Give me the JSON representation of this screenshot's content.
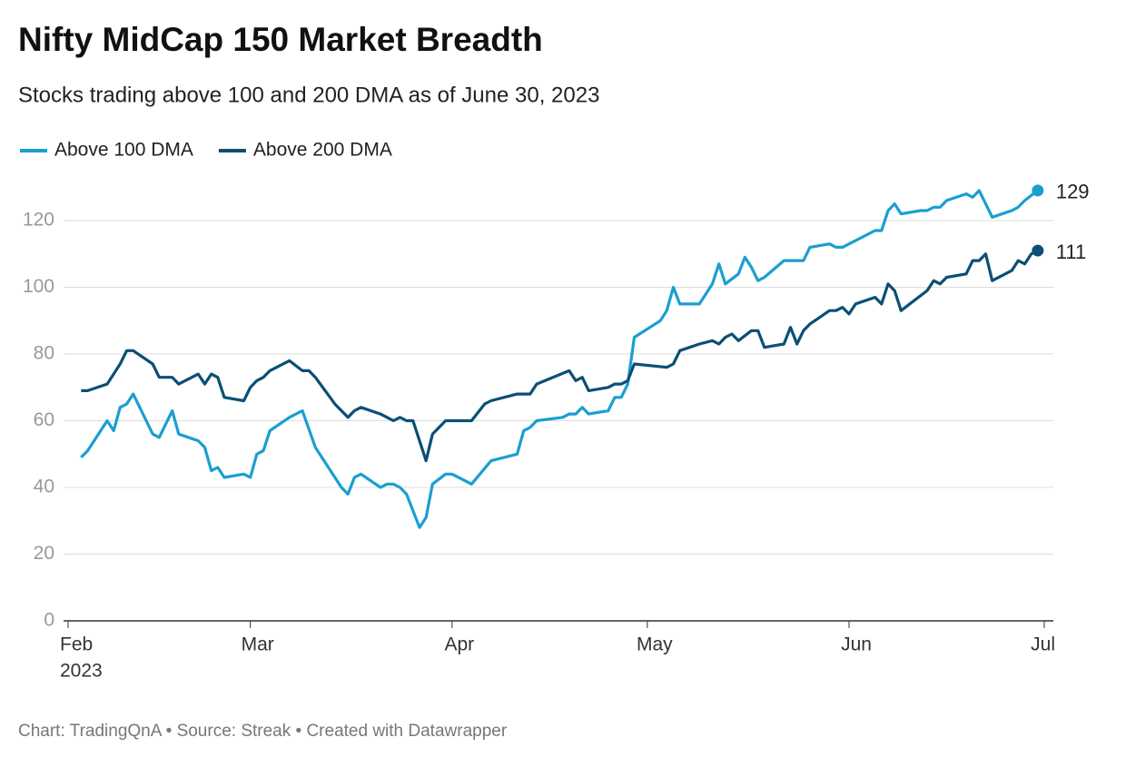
{
  "chart_data": {
    "type": "line",
    "title": "Nifty MidCap 150 Market Breadth",
    "subtitle": "Stocks trading above 100 and 200 DMA as of June 30, 2023",
    "source": "Chart: TradingQnA • Source: Streak • Created with Datawrapper",
    "x_year_label": "2023",
    "xlim": [
      0,
      150
    ],
    "xticks": [
      {
        "value": 0,
        "label": "Feb"
      },
      {
        "value": 28,
        "label": "Mar"
      },
      {
        "value": 59,
        "label": "Apr"
      },
      {
        "value": 89,
        "label": "May"
      },
      {
        "value": 120,
        "label": "Jun"
      },
      {
        "value": 150,
        "label": "Jul"
      }
    ],
    "ylim": [
      0,
      132
    ],
    "yticks": [
      0,
      20,
      40,
      60,
      80,
      100,
      120
    ],
    "grid": true,
    "legend": "top",
    "series": [
      {
        "name": "Above 100 DMA",
        "color": "#1a9fd0",
        "x": [
          2,
          3,
          6,
          7,
          8,
          9,
          10,
          13,
          14,
          16,
          17,
          20,
          21,
          22,
          23,
          24,
          27,
          28,
          29,
          30,
          31,
          34,
          36,
          38,
          42,
          43,
          44,
          45,
          48,
          49,
          50,
          51,
          52,
          54,
          55,
          56,
          58,
          59,
          62,
          65,
          69,
          70,
          71,
          72,
          76,
          77,
          78,
          79,
          80,
          83,
          84,
          85,
          86,
          87,
          91,
          92,
          93,
          94,
          97,
          99,
          100,
          101,
          103,
          104,
          105,
          106,
          107,
          110,
          113,
          114,
          117,
          118,
          119,
          124,
          125,
          126,
          127,
          128,
          131,
          132,
          133,
          134,
          135,
          138,
          139,
          140,
          142,
          145,
          146,
          147,
          149
        ],
        "values": [
          49,
          51,
          60,
          57,
          64,
          65,
          68,
          56,
          55,
          63,
          56,
          54,
          52,
          45,
          46,
          43,
          44,
          43,
          50,
          51,
          57,
          61,
          63,
          52,
          40,
          38,
          43,
          44,
          40,
          41,
          41,
          40,
          38,
          28,
          31,
          41,
          44,
          44,
          41,
          48,
          50,
          57,
          58,
          60,
          61,
          62,
          62,
          64,
          62,
          63,
          67,
          67,
          71,
          85,
          90,
          93,
          100,
          95,
          95,
          101,
          107,
          101,
          104,
          109,
          106,
          102,
          103,
          108,
          108,
          112,
          113,
          112,
          112,
          117,
          117,
          123,
          125,
          122,
          123,
          123,
          124,
          124,
          126,
          128,
          127,
          129,
          121,
          123,
          124,
          126,
          129
        ]
      },
      {
        "name": "Above 200 DMA",
        "color": "#0b4f75",
        "x": [
          2,
          3,
          6,
          8,
          9,
          10,
          13,
          14,
          16,
          17,
          20,
          21,
          22,
          23,
          24,
          27,
          28,
          29,
          30,
          31,
          34,
          36,
          37,
          38,
          41,
          43,
          44,
          45,
          48,
          49,
          50,
          51,
          52,
          53,
          55,
          56,
          58,
          62,
          64,
          65,
          69,
          71,
          72,
          77,
          78,
          79,
          80,
          83,
          84,
          85,
          86,
          87,
          92,
          93,
          94,
          97,
          99,
          100,
          101,
          102,
          103,
          105,
          106,
          107,
          110,
          111,
          112,
          113,
          114,
          117,
          118,
          119,
          120,
          121,
          124,
          125,
          126,
          127,
          128,
          132,
          133,
          134,
          135,
          138,
          139,
          140,
          141,
          142,
          145,
          146,
          147,
          148,
          149
        ],
        "values": [
          69,
          69,
          71,
          77,
          81,
          81,
          77,
          73,
          73,
          71,
          74,
          71,
          74,
          73,
          67,
          66,
          70,
          72,
          73,
          75,
          78,
          75,
          75,
          73,
          65,
          61,
          63,
          64,
          62,
          61,
          60,
          61,
          60,
          60,
          48,
          56,
          60,
          60,
          65,
          66,
          68,
          68,
          71,
          75,
          72,
          73,
          69,
          70,
          71,
          71,
          72,
          77,
          76,
          77,
          81,
          83,
          84,
          83,
          85,
          86,
          84,
          87,
          87,
          82,
          83,
          88,
          83,
          87,
          89,
          93,
          93,
          94,
          92,
          95,
          97,
          95,
          101,
          99,
          93,
          99,
          102,
          101,
          103,
          104,
          108,
          108,
          110,
          102,
          105,
          108,
          107,
          110,
          111
        ]
      }
    ]
  }
}
